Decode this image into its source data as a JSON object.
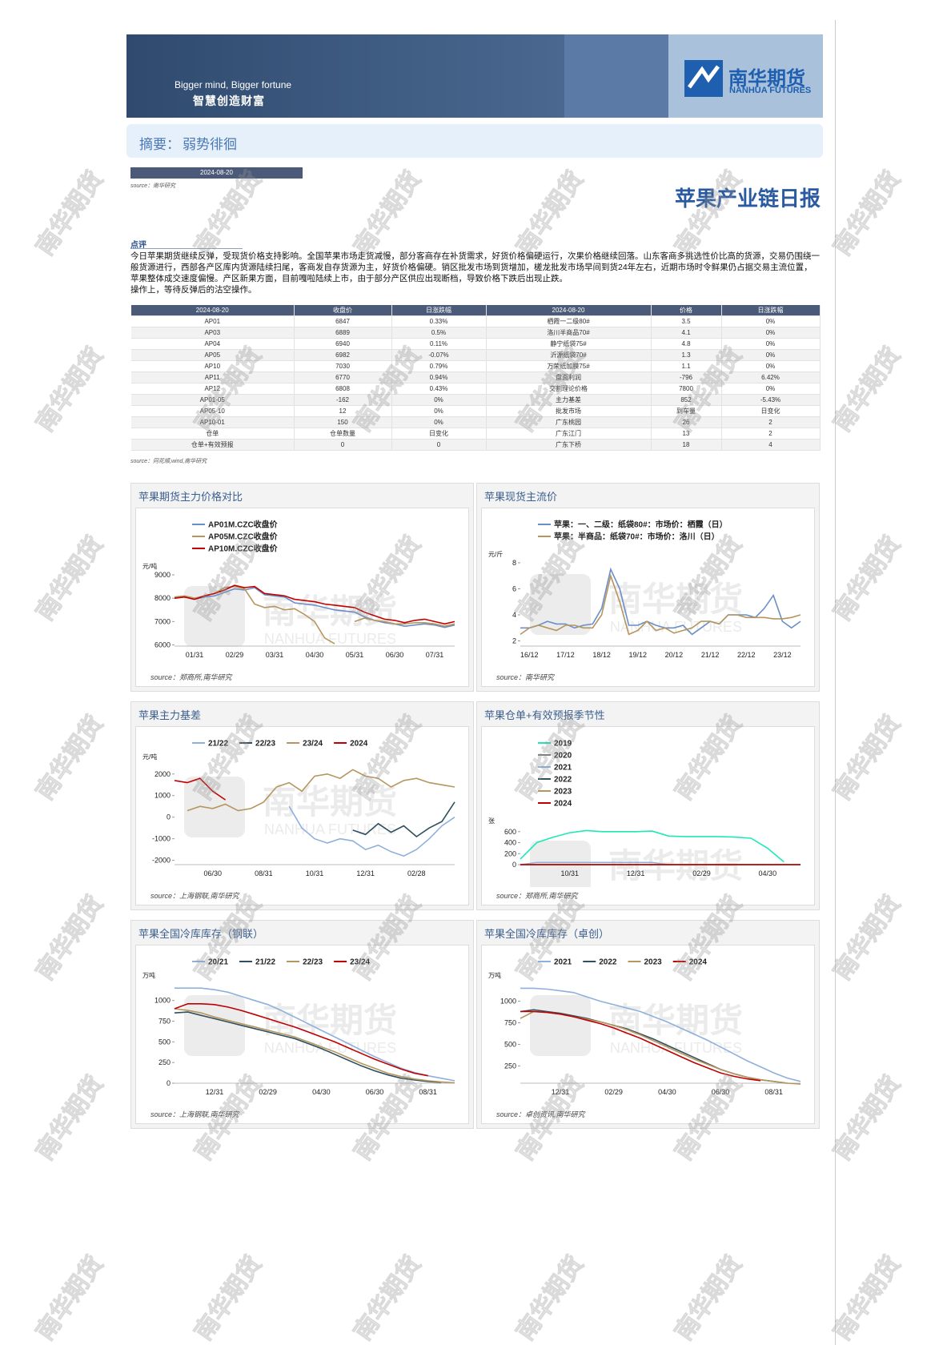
{
  "header": {
    "slogan_en": "Bigger mind, Bigger fortune",
    "slogan_cn": "智慧创造财富",
    "logo_cn": "南华期货",
    "logo_en": "NANHUA FUTURES"
  },
  "summary": {
    "label": "摘要：",
    "text": "弱势徘徊"
  },
  "date": "2024-08-20",
  "date_source": "source：南华研究",
  "report_title": "苹果产业链日报",
  "comment": {
    "heading": "点评",
    "paragraphs": [
      "今日苹果期货继续反弹，受现货价格支持影响。全国苹果市场走货减慢，部分客商存在补货需求，好货价格偏硬运行，次果价格继续回落。山东客商多挑选性价比高的货源，交易仍围绕一般货源进行，西部各产区库内货源陆续扫尾，客商发自存货源为主，好货价格偏硬。销区批发市场到货增加，槎龙批发市场早间到货24年左右，近期市场时令鲜果仍占据交易主流位置，苹果整体成交速度偏慢。产区新果方面，目前嘎啦陆续上市，由于部分产区供应出现断档，导致价格下跌后出现止跌。",
      "操作上，等待反弹后的沽空操作。"
    ]
  },
  "table": {
    "header": [
      "2024-08-20",
      "收盘价",
      "日涨跌幅",
      "2024-08-20",
      "价格",
      "日涨跌幅"
    ],
    "rows": [
      [
        "AP01",
        "6847",
        "0.33%",
        "栖霞一二级80#",
        "3.5",
        "0%"
      ],
      [
        "AP03",
        "6889",
        "0.5%",
        "洛川半商品70#",
        "4.1",
        "0%"
      ],
      [
        "AP04",
        "6940",
        "0.11%",
        "静宁纸袋75#",
        "4.8",
        "0%"
      ],
      [
        "AP05",
        "6982",
        "-0.07%",
        "沂源纸袋70#",
        "1.3",
        "0%"
      ],
      [
        "AP10",
        "7030",
        "0.79%",
        "万荣纸加膜75#",
        "1.1",
        "0%"
      ],
      [
        "AP11",
        "6770",
        "0.94%",
        "盘面利润",
        "-796",
        "6.42%"
      ],
      [
        "AP12",
        "6808",
        "0.43%",
        "交割理论价格",
        "7800",
        "0%"
      ],
      [
        "AP01-05",
        "-162",
        "0%",
        "主力基差",
        "852",
        "-5.43%"
      ],
      [
        "AP05-10",
        "12",
        "0%",
        "批发市场",
        "到车量",
        "日变化"
      ],
      [
        "AP10-01",
        "150",
        "0%",
        "广东桃园",
        "26",
        "2"
      ],
      [
        "仓单",
        "仓单数量",
        "日变化",
        "广东江门",
        "13",
        "2"
      ],
      [
        "仓单+有效预报",
        "0",
        "0",
        "广东下桥",
        "18",
        "4"
      ]
    ],
    "source": "source：同花顺,wind,南华研究"
  },
  "chart_data": [
    {
      "type": "line",
      "title": "苹果期货主力价格对比",
      "source": "source：郑商所,南华研究",
      "y_label": "元/吨",
      "categories": [
        null,
        null,
        "01/31",
        null,
        null,
        null,
        "02/29",
        null,
        null,
        null,
        "03/31",
        null,
        null,
        null,
        "04/30",
        null,
        null,
        null,
        "05/31",
        null,
        null,
        null,
        "06/30",
        null,
        null,
        null,
        "07/31",
        null,
        null
      ],
      "series": [
        {
          "name": "AP01M.CZC收盘价",
          "color": "#6a8fc7",
          "values": [
            8000,
            8050,
            7950,
            8050,
            8100,
            8250,
            8400,
            8350,
            8450,
            8150,
            8100,
            8050,
            7800,
            7750,
            7700,
            7600,
            7500,
            7450,
            7400,
            7200,
            7050,
            6950,
            6900,
            6800,
            6850,
            6900,
            6850,
            6750,
            6850
          ]
        },
        {
          "name": "AP05M.CZC收盘价",
          "color": "#b5965e",
          "values": [
            8050,
            8100,
            8000,
            8100,
            8200,
            8450,
            8500,
            8400,
            7750,
            7600,
            7650,
            7500,
            7550,
            7300,
            7000,
            6300,
            6050,
            null,
            7000,
            7150,
            7050,
            7000,
            6900,
            6900,
            6950,
            6950,
            6900,
            6800,
            6900
          ]
        },
        {
          "name": "AP10M.CZC收盘价",
          "color": "#c00000",
          "values": [
            8000,
            8050,
            7950,
            8100,
            8200,
            8350,
            8550,
            8450,
            8500,
            8200,
            8150,
            8100,
            7950,
            7900,
            7850,
            7750,
            7700,
            7650,
            7600,
            7400,
            7250,
            7100,
            7050,
            6950,
            7050,
            7100,
            7000,
            6900,
            7000
          ]
        }
      ],
      "ylim": [
        5950,
        9000
      ],
      "yticks": [
        6000,
        7000,
        8000,
        9000
      ],
      "legend_position": "top"
    },
    {
      "type": "line",
      "title": "苹果现货主流价",
      "source": "source：南华研究",
      "y_label": "元/斤",
      "categories": [
        null,
        "16/12",
        null,
        null,
        null,
        "17/12",
        null,
        null,
        null,
        "18/12",
        null,
        null,
        null,
        "19/12",
        null,
        null,
        null,
        "20/12",
        null,
        null,
        null,
        "21/12",
        null,
        null,
        null,
        "22/12",
        null,
        null,
        null,
        "23/12",
        null,
        null
      ],
      "series": [
        {
          "name": "苹果：一、二级：纸袋80#：市场价：栖霞（日）",
          "color": "#6a8fc7",
          "values": [
            3,
            3,
            3.2,
            3.5,
            3.3,
            3.3,
            3.0,
            3.2,
            3.3,
            4.5,
            7.5,
            6,
            3.2,
            3.2,
            3.5,
            3.2,
            3.0,
            3.0,
            3.2,
            2.5,
            3.0,
            3.5,
            3.3,
            4.0,
            4.0,
            4.0,
            3.8,
            4.5,
            5.5,
            3.5,
            3.0,
            3.5
          ]
        },
        {
          "name": "苹果：半商品：纸袋70#：市场价：洛川（日）",
          "color": "#b5965e",
          "values": [
            2.5,
            3.0,
            3.2,
            3.0,
            2.8,
            3.2,
            3.2,
            3.0,
            3.0,
            4.0,
            7.0,
            5.0,
            2.5,
            2.8,
            3.5,
            2.8,
            3.0,
            2.6,
            2.8,
            3.0,
            3.5,
            3.5,
            3.3,
            4.0,
            4.0,
            3.8,
            3.8,
            3.8,
            3.7,
            3.7,
            3.8,
            4.0
          ]
        }
      ],
      "ylim": [
        1.6,
        8
      ],
      "yticks": [
        2,
        4,
        6,
        8
      ],
      "legend_position": "top"
    },
    {
      "type": "line",
      "title": "苹果主力基差",
      "source": "source：上海钢联,南华研究",
      "y_label": "元/吨",
      "categories": [
        null,
        null,
        null,
        "06/30",
        null,
        null,
        null,
        "08/31",
        null,
        null,
        null,
        "10/31",
        null,
        null,
        null,
        "12/31",
        null,
        null,
        null,
        "02/28",
        null,
        null,
        null
      ],
      "series": [
        {
          "name": "21/22",
          "color": "#8fb0dc",
          "values": [
            null,
            null,
            null,
            null,
            null,
            null,
            null,
            null,
            null,
            500,
            -500,
            -1000,
            -1200,
            -1000,
            -1100,
            -1500,
            -1300,
            -1600,
            -1800,
            -1500,
            -1000,
            -400,
            0
          ]
        },
        {
          "name": "22/23",
          "color": "#2f4f5f",
          "values": [
            null,
            null,
            null,
            null,
            null,
            null,
            null,
            null,
            null,
            null,
            null,
            null,
            null,
            null,
            -600,
            -800,
            -300,
            -700,
            -400,
            -900,
            -500,
            -200,
            700
          ]
        },
        {
          "name": "23/24",
          "color": "#b5965e",
          "values": [
            null,
            300,
            500,
            400,
            600,
            300,
            400,
            700,
            1400,
            1600,
            1200,
            1900,
            2000,
            1800,
            2200,
            1900,
            1800,
            1400,
            1700,
            1800,
            1600,
            1500,
            1400
          ]
        },
        {
          "name": "2024",
          "color": "#c00000",
          "values": [
            1700,
            1600,
            1800,
            1200,
            800,
            null,
            null,
            null,
            null,
            null,
            null,
            null,
            null,
            null,
            null,
            null,
            null,
            null,
            null,
            null,
            null,
            null,
            null
          ]
        }
      ],
      "ylim": [
        -2200,
        2400
      ],
      "yticks": [
        -2000,
        -1000,
        0,
        1000,
        2000
      ],
      "legend_position": "top"
    },
    {
      "type": "line",
      "title": "苹果仓单+有效预报季节性",
      "source": "source：郑商所,南华研究",
      "y_label": "张",
      "categories": [
        null,
        null,
        null,
        "10/31",
        null,
        null,
        null,
        "12/31",
        null,
        null,
        null,
        "02/29",
        null,
        null,
        null,
        "04/30",
        null,
        null
      ],
      "series": [
        {
          "name": "2019",
          "color": "#1de9b6",
          "values": [
            100,
            400,
            500,
            580,
            620,
            600,
            600,
            600,
            610,
            520,
            510,
            510,
            510,
            500,
            480,
            300,
            50,
            null
          ]
        },
        {
          "name": "2020",
          "color": "#7f7f7f",
          "values": [
            0,
            0,
            0,
            0,
            0,
            0,
            0,
            0,
            0,
            0,
            0,
            0,
            0,
            0,
            0,
            0,
            0,
            0
          ]
        },
        {
          "name": "2021",
          "color": "#8fb0dc",
          "values": [
            0,
            40,
            40,
            40,
            40,
            40,
            40,
            40,
            40,
            0,
            0,
            0,
            0,
            0,
            0,
            0,
            0,
            0
          ]
        },
        {
          "name": "2022",
          "color": "#2f4f5f",
          "values": [
            0,
            0,
            0,
            0,
            0,
            0,
            0,
            0,
            0,
            0,
            0,
            0,
            0,
            0,
            0,
            0,
            0,
            0
          ]
        },
        {
          "name": "2023",
          "color": "#b5965e",
          "values": [
            0,
            0,
            0,
            0,
            0,
            0,
            0,
            0,
            0,
            0,
            0,
            0,
            0,
            0,
            0,
            0,
            0,
            0
          ]
        },
        {
          "name": "2024",
          "color": "#c00000",
          "values": [
            0,
            0,
            0,
            0,
            0,
            0,
            0,
            0,
            0,
            0,
            0,
            0,
            0,
            0,
            0,
            0,
            0,
            0
          ]
        }
      ],
      "ylim": [
        0,
        640
      ],
      "yticks": [
        0,
        200,
        400,
        600
      ],
      "legend_position": "top"
    },
    {
      "type": "line",
      "title": "苹果全国冷库库存（钢联）",
      "source": "source：上海钢联,南华研究",
      "y_label": "万吨",
      "categories": [
        null,
        null,
        null,
        "12/31",
        null,
        null,
        null,
        "02/29",
        null,
        null,
        null,
        "04/30",
        null,
        null,
        null,
        "06/30",
        null,
        null,
        null,
        "08/31",
        null,
        null
      ],
      "series": [
        {
          "name": "20/21",
          "color": "#8fb0dc",
          "values": [
            1150,
            1150,
            1150,
            1130,
            1100,
            1050,
            1000,
            950,
            880,
            800,
            720,
            640,
            560,
            480,
            400,
            320,
            250,
            180,
            130,
            90,
            60,
            30
          ]
        },
        {
          "name": "21/22",
          "color": "#2f4f5f",
          "values": [
            850,
            860,
            820,
            780,
            740,
            700,
            660,
            620,
            580,
            540,
            480,
            420,
            350,
            280,
            210,
            150,
            100,
            60,
            40,
            20,
            10,
            null
          ]
        },
        {
          "name": "22/23",
          "color": "#b5965e",
          "values": [
            900,
            880,
            850,
            800,
            760,
            720,
            680,
            640,
            600,
            560,
            500,
            440,
            380,
            310,
            240,
            180,
            120,
            80,
            50,
            30,
            15,
            5
          ]
        },
        {
          "name": "23/24",
          "color": "#c00000",
          "values": [
            900,
            960,
            960,
            950,
            920,
            880,
            830,
            780,
            730,
            680,
            620,
            560,
            500,
            430,
            360,
            290,
            230,
            170,
            120,
            90,
            null,
            null
          ]
        }
      ],
      "ylim": [
        0,
        1200
      ],
      "yticks": [
        0,
        250,
        500,
        750,
        1000
      ],
      "legend_position": "top"
    },
    {
      "type": "line",
      "title": "苹果全国冷库库存（卓创）",
      "source": "source：卓创资讯,南华研究",
      "y_label": "万吨",
      "categories": [
        null,
        null,
        null,
        "12/31",
        null,
        null,
        null,
        "02/29",
        null,
        null,
        null,
        "04/30",
        null,
        null,
        null,
        "06/30",
        null,
        null,
        null,
        "08/31",
        null,
        null
      ],
      "series": [
        {
          "name": "2021",
          "color": "#8fb0dc",
          "values": [
            1150,
            1150,
            1140,
            1120,
            1100,
            1050,
            1000,
            960,
            920,
            880,
            820,
            760,
            690,
            620,
            550,
            470,
            390,
            310,
            240,
            170,
            110,
            70
          ]
        },
        {
          "name": "2022",
          "color": "#2f4f5f",
          "values": [
            880,
            900,
            880,
            860,
            830,
            800,
            760,
            720,
            680,
            620,
            560,
            490,
            420,
            350,
            280,
            210,
            160,
            120,
            90,
            70,
            50,
            null
          ]
        },
        {
          "name": "2023",
          "color": "#b5965e",
          "values": [
            800,
            880,
            870,
            850,
            820,
            790,
            760,
            720,
            670,
            610,
            540,
            470,
            400,
            330,
            270,
            210,
            160,
            120,
            90,
            70,
            50,
            40
          ]
        },
        {
          "name": "2024",
          "color": "#c00000",
          "values": [
            880,
            880,
            870,
            850,
            820,
            780,
            740,
            690,
            630,
            570,
            500,
            430,
            360,
            290,
            230,
            170,
            130,
            100,
            80,
            null,
            null,
            null
          ]
        }
      ],
      "ylim": [
        50,
        1200
      ],
      "yticks": [
        250,
        500,
        750,
        1000
      ],
      "legend_position": "top"
    }
  ]
}
